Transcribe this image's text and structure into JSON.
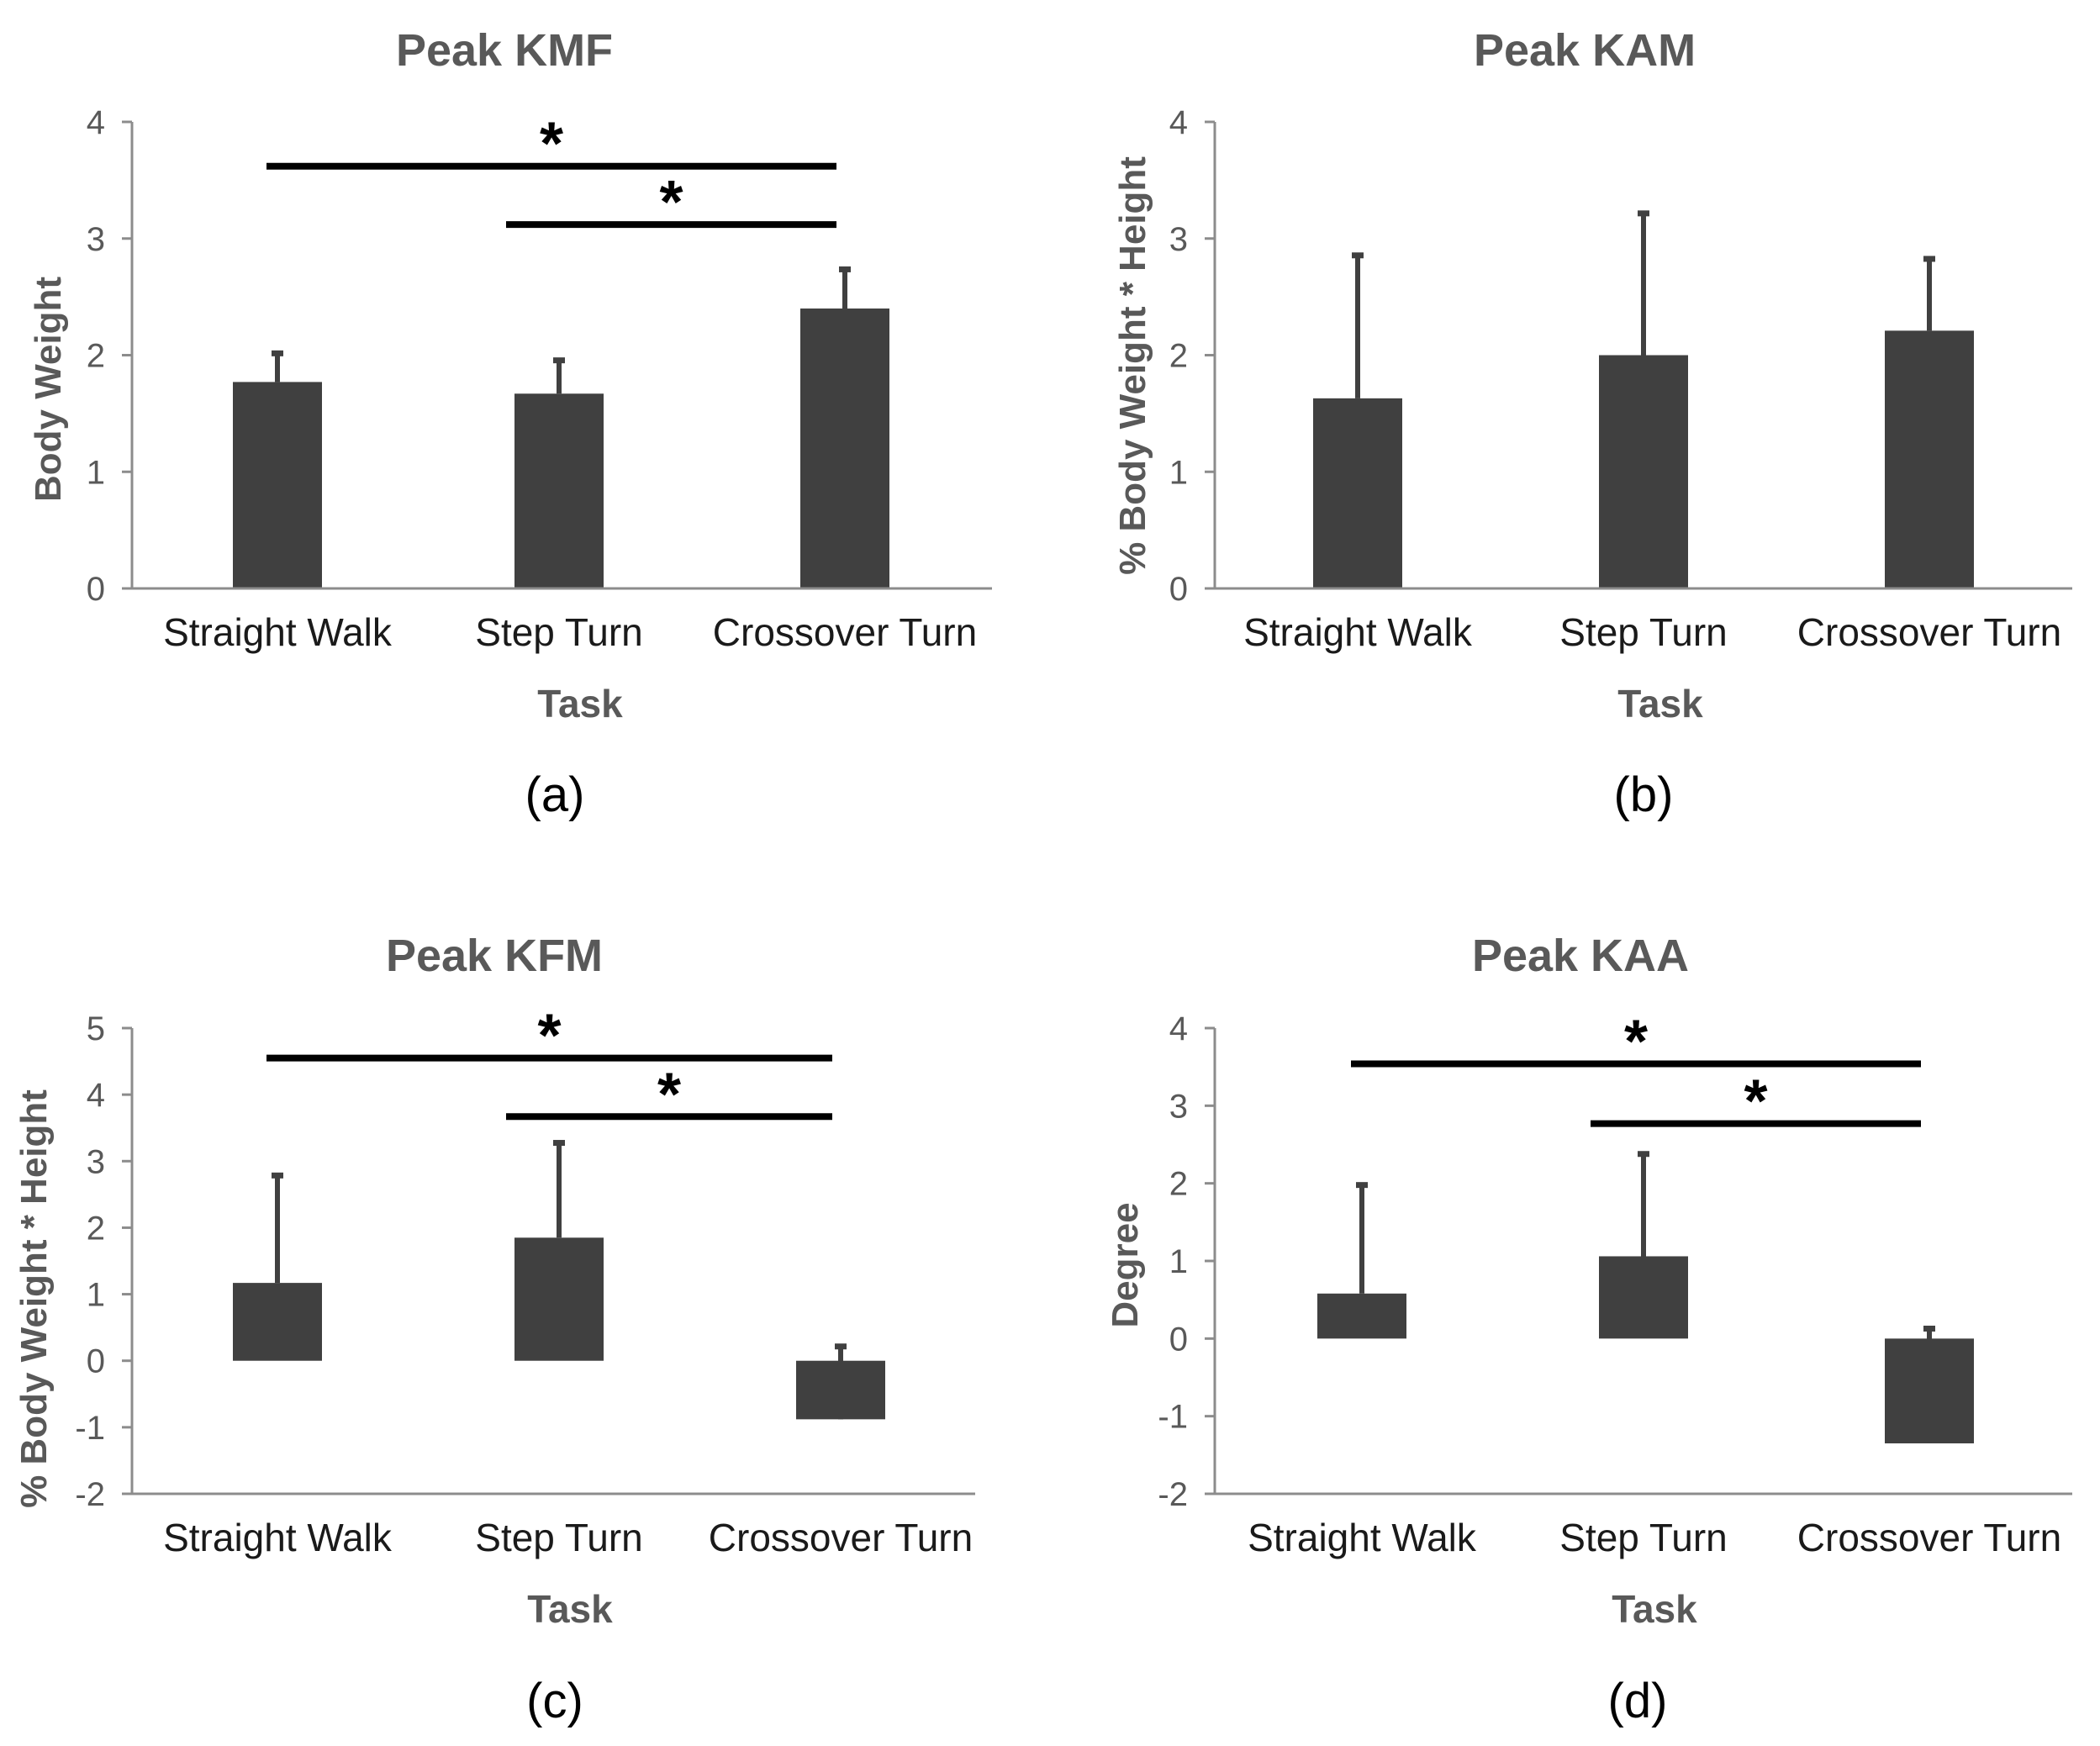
{
  "chart_data": [
    {
      "type": "bar",
      "panel": "(a)",
      "title": "Peak KMF",
      "xlabel": "Task",
      "ylabel": "Body Weight",
      "categories": [
        "Straight Walk",
        "Step Turn",
        "Crossover Turn"
      ],
      "values": [
        1.77,
        1.67,
        2.4
      ],
      "error_upper": [
        0.26,
        0.3,
        0.35
      ],
      "ylim": [
        0,
        4
      ],
      "yticks": [
        "0",
        "1",
        "2",
        "3",
        "4"
      ],
      "grid": false,
      "significance": [
        {
          "from": 0,
          "to": 2,
          "y": 3.62,
          "label": "*"
        },
        {
          "from": 1,
          "to": 2,
          "y": 3.12,
          "label": "*"
        }
      ]
    },
    {
      "type": "bar",
      "panel": "(b)",
      "title": "Peak KAM",
      "xlabel": "Task",
      "ylabel": "% Body Weight * Height",
      "categories": [
        "Straight Walk",
        "Step Turn",
        "Crossover Turn"
      ],
      "values": [
        1.63,
        2.0,
        2.21
      ],
      "error_upper": [
        1.24,
        1.23,
        0.63
      ],
      "ylim": [
        0,
        4
      ],
      "yticks": [
        "0",
        "1",
        "2",
        "3",
        "4"
      ],
      "grid": false,
      "significance": []
    },
    {
      "type": "bar",
      "panel": "(c)",
      "title": "Peak KFM",
      "xlabel": "Task",
      "ylabel": "% Body Weight * Height",
      "categories": [
        "Straight Walk",
        "Step Turn",
        "Crossover Turn"
      ],
      "values": [
        1.17,
        1.85,
        -0.88
      ],
      "error_upper": [
        1.64,
        1.45,
        1.12
      ],
      "ylim": [
        -2,
        5
      ],
      "yticks": [
        "-2",
        "-1",
        "0",
        "1",
        "2",
        "3",
        "4",
        "5"
      ],
      "grid": false,
      "significance": [
        {
          "from": 0,
          "to": 2,
          "y": 4.55,
          "label": "*"
        },
        {
          "from": 1,
          "to": 2,
          "y": 3.67,
          "label": "*"
        }
      ]
    },
    {
      "type": "bar",
      "panel": "(d)",
      "title": "Peak KAA",
      "xlabel": "Task",
      "ylabel": "Degree",
      "categories": [
        "Straight Walk",
        "Step Turn",
        "Crossover Turn"
      ],
      "values": [
        0.58,
        1.06,
        -1.35
      ],
      "error_upper": [
        1.42,
        1.34,
        1.5
      ],
      "ylim": [
        -2,
        4
      ],
      "yticks": [
        "-2",
        "-1",
        "0",
        "1",
        "2",
        "3",
        "4"
      ],
      "grid": false,
      "significance": [
        {
          "from": 0,
          "to": 2,
          "y": 3.54,
          "label": "*"
        },
        {
          "from": 1,
          "to": 2,
          "y": 2.77,
          "label": "*"
        }
      ]
    }
  ]
}
